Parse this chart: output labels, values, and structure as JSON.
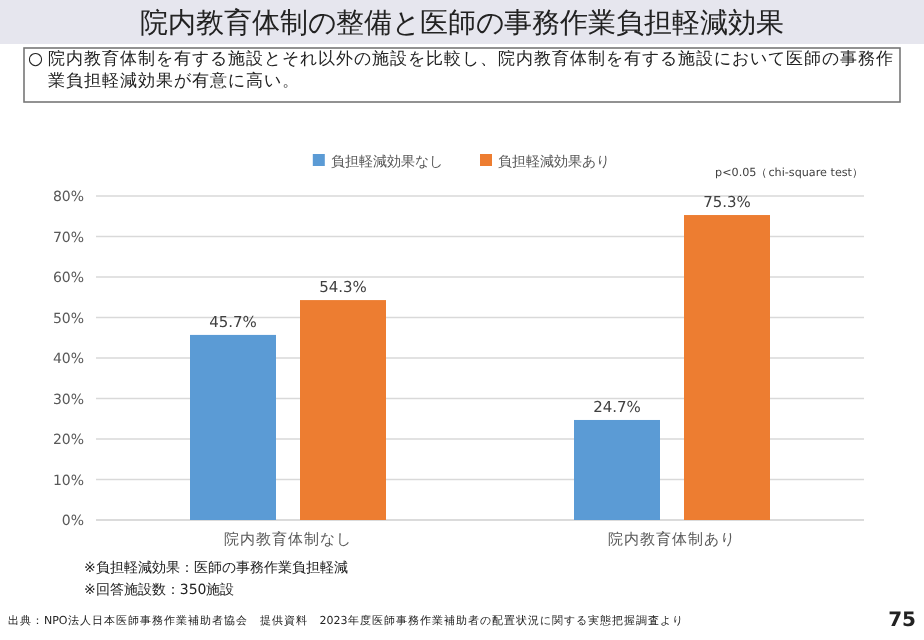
{
  "chart_data": {
    "type": "bar",
    "title": "院内教育体制の整備と医師の事務作業負担軽減効果",
    "subtitle": "○ 院内教育体制を有する施設とそれ以外の施設を比較し、院内教育体制を有する施設において医師の事務作業負担軽減効果が有意に高い。",
    "categories": [
      "院内教育体制なし",
      "院内教育体制あり"
    ],
    "series": [
      {
        "name": "負担軽減効果なし",
        "color": "#5b9bd5",
        "values": [
          45.7,
          24.7
        ],
        "value_labels": [
          "45.7%",
          "24.7%"
        ]
      },
      {
        "name": "負担軽減効果あり",
        "color": "#ed7d31",
        "values": [
          54.3,
          75.3
        ],
        "value_labels": [
          "54.3%",
          "75.3%"
        ]
      }
    ],
    "ylim": [
      0,
      80
    ],
    "yticks": [
      {
        "value": 0,
        "label": "0%"
      },
      {
        "value": 10,
        "label": "10%"
      },
      {
        "value": 20,
        "label": "20%"
      },
      {
        "value": 30,
        "label": "30%"
      },
      {
        "value": 40,
        "label": "40%"
      },
      {
        "value": 50,
        "label": "50%"
      },
      {
        "value": 60,
        "label": "60%"
      },
      {
        "value": 70,
        "label": "70%"
      },
      {
        "value": 80,
        "label": "80%"
      }
    ],
    "grid": "y",
    "legend": "top",
    "annotations": [
      "p<0.05（chi-square test）",
      "※負担軽減効果：医師の事務作業負担軽減",
      "※回答施設数：350施設",
      "出典：NPO法人日本医師事務作業補助者協会　提供資料　2023年度医師事務作業補助者の配置状況に関する実態把握調査より",
      "75"
    ]
  }
}
